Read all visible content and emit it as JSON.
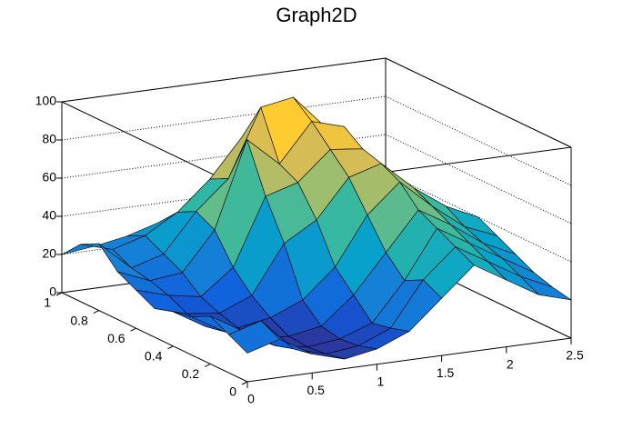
{
  "chart_data": {
    "type": "surface",
    "title": "Graph2D",
    "x": [
      0,
      0.25,
      0.5,
      0.75,
      1,
      1.25,
      1.5,
      1.75,
      2,
      2.25,
      2.5
    ],
    "y": [
      0,
      0.1,
      0.2,
      0.3,
      0.4,
      0.5,
      0.6,
      0.7,
      0.8,
      0.9,
      1
    ],
    "z": [
      [
        15,
        20,
        10,
        5,
        8,
        15,
        30,
        45,
        35,
        25,
        20
      ],
      [
        20,
        25,
        8,
        3,
        5,
        12,
        35,
        50,
        40,
        30,
        22
      ],
      [
        25,
        15,
        5,
        2,
        4,
        10,
        30,
        55,
        45,
        35,
        25
      ],
      [
        20,
        10,
        4,
        3,
        6,
        20,
        40,
        60,
        50,
        38,
        30
      ],
      [
        18,
        8,
        5,
        8,
        15,
        30,
        55,
        70,
        55,
        42,
        35
      ],
      [
        15,
        10,
        8,
        15,
        40,
        50,
        70,
        75,
        60,
        48,
        40
      ],
      [
        20,
        15,
        12,
        25,
        60,
        65,
        80,
        78,
        55,
        45,
        38
      ],
      [
        25,
        18,
        20,
        40,
        85,
        70,
        90,
        85,
        50,
        35,
        30
      ],
      [
        35,
        20,
        25,
        45,
        60,
        95,
        98,
        80,
        45,
        30,
        25
      ],
      [
        30,
        25,
        30,
        40,
        55,
        75,
        85,
        60,
        40,
        28,
        20
      ],
      [
        20,
        22,
        25,
        30,
        35,
        40,
        45,
        38,
        30,
        22,
        18
      ]
    ],
    "xlim": [
      0,
      2.5
    ],
    "ylim": [
      0,
      1
    ],
    "zlim": [
      0,
      100
    ],
    "xticks": [
      0,
      0.5,
      1,
      1.5,
      2,
      2.5
    ],
    "yticks": [
      0,
      0.2,
      0.4,
      0.6,
      0.8,
      1
    ],
    "zticks": [
      0,
      20,
      40,
      60,
      80,
      100
    ],
    "grid": true,
    "palette": [
      "#352a87",
      "#0f5cdd",
      "#1481d6",
      "#06a4ca",
      "#2eb7a4",
      "#87bf77",
      "#d1bb59",
      "#fec832",
      "#f9fb0e"
    ]
  }
}
